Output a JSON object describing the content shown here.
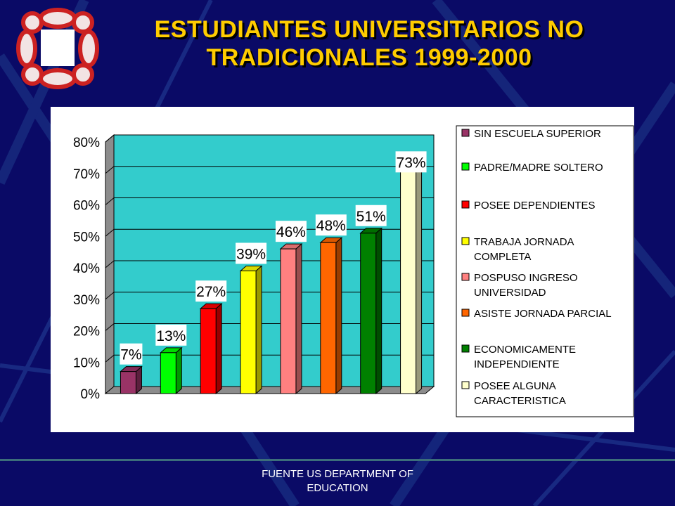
{
  "slide": {
    "title_line1": "ESTUDIANTES UNIVERSITARIOS NO",
    "title_line2": "TRADICIONALES 1999-2000",
    "footer_line1": "FUENTE US DEPARTMENT OF",
    "footer_line2": "EDUCATION"
  },
  "colors": {
    "background": "#0a0a66",
    "title": "#ffcc00",
    "plot_wall": "#33cccc"
  },
  "chart_data": {
    "type": "bar",
    "categories": [
      "SIN ESCUELA SUPERIOR",
      "PADRE/MADRE SOLTERO",
      "POSEE DEPENDIENTES",
      "TRABAJA JORNADA COMPLETA",
      "POSPUSO INGRESO UNIVERSIDAD",
      "ASISTE JORNADA PARCIAL",
      "ECONOMICAMENTE INDEPENDIENTE",
      "POSEE ALGUNA CARACTERISTICA"
    ],
    "legend_lines": [
      [
        "SIN ESCUELA SUPERIOR"
      ],
      [
        "PADRE/MADRE SOLTERO"
      ],
      [
        "POSEE DEPENDIENTES"
      ],
      [
        "TRABAJA JORNADA",
        "COMPLETA"
      ],
      [
        "POSPUSO INGRESO",
        "UNIVERSIDAD"
      ],
      [
        "ASISTE JORNADA PARCIAL"
      ],
      [
        "ECONOMICAMENTE",
        "INDEPENDIENTE"
      ],
      [
        "POSEE ALGUNA",
        "CARACTERISTICA"
      ]
    ],
    "values": [
      7,
      13,
      27,
      39,
      46,
      48,
      51,
      73
    ],
    "data_labels": [
      "7%",
      "13%",
      "27%",
      "39%",
      "46%",
      "48%",
      "51%",
      "73%"
    ],
    "colors": [
      "#993366",
      "#00ff00",
      "#ff0000",
      "#ffff00",
      "#ff8080",
      "#ff6600",
      "#008000",
      "#ffffcc"
    ],
    "y_ticks": [
      "0%",
      "10%",
      "20%",
      "30%",
      "40%",
      "50%",
      "60%",
      "70%",
      "80%"
    ],
    "ylim": [
      0,
      80
    ],
    "grid": true,
    "legend_position": "right",
    "style": "3d-bar"
  }
}
